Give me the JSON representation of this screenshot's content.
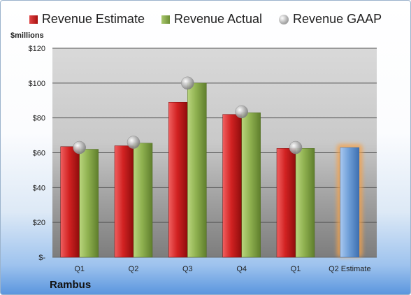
{
  "legend": {
    "estimate": "Revenue Estimate",
    "actual": "Revenue Actual",
    "gaap": "Revenue GAAP"
  },
  "units_label": "$millions",
  "company": "Rambus",
  "colors": {
    "estimate": "#c62020",
    "actual": "#8aab4e",
    "gaap": "#a8a8a8",
    "estimate_highlight": "#6f9fd8",
    "highlight_glow": "#f6a24a"
  },
  "chart_data": {
    "type": "bar",
    "title": "",
    "xlabel": "",
    "ylabel": "$millions",
    "categories": [
      "Q1",
      "Q2",
      "Q3",
      "Q4",
      "Q1",
      "Q2 Estimate"
    ],
    "series": [
      {
        "name": "Revenue Estimate",
        "values": [
          63.5,
          64,
          89,
          82,
          62.5,
          63
        ]
      },
      {
        "name": "Revenue Actual",
        "values": [
          62,
          65.5,
          100,
          83,
          62.5,
          null
        ]
      },
      {
        "name": "Revenue GAAP",
        "values": [
          63,
          66,
          100,
          83.5,
          63,
          null
        ]
      }
    ],
    "ylim": [
      0,
      120
    ],
    "yticks": [
      0,
      20,
      40,
      60,
      80,
      100,
      120
    ],
    "ytick_labels": [
      "$-",
      "$20",
      "$40",
      "$60",
      "$80",
      "$100",
      "$120"
    ],
    "grid": true,
    "legend_position": "top"
  }
}
